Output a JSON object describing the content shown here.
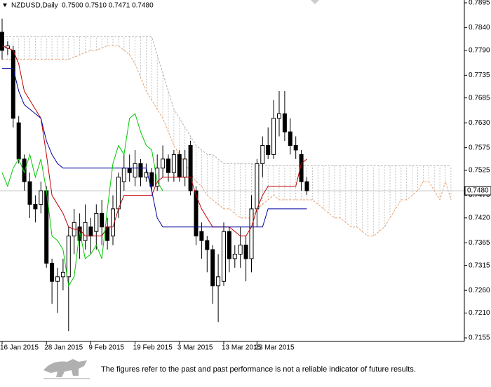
{
  "chart_data": {
    "type": "candlestick",
    "title": "NZDUSD,Daily",
    "ohlc_label": "0.7500 0.7510 0.7471 0.7480",
    "footer": "The figures refer to the past and past performance is not a reliable indicator of future results.",
    "categories": [
      "16 Jan 2015",
      null,
      null,
      null,
      null,
      null,
      null,
      null,
      "28 Jan 2015",
      null,
      null,
      null,
      null,
      null,
      null,
      null,
      "9 Feb 2015",
      null,
      null,
      null,
      null,
      null,
      null,
      null,
      "19 Feb 2015",
      null,
      null,
      null,
      null,
      null,
      null,
      null,
      "3 Mar 2015",
      null,
      null,
      null,
      null,
      null,
      null,
      null,
      "13 Mar 2015",
      null,
      null,
      null,
      null,
      null,
      "23 Mar 2015",
      null,
      null,
      null,
      null,
      null,
      null,
      null,
      null,
      null
    ],
    "open": [
      0.783,
      0.7795,
      0.779,
      0.763,
      0.755,
      0.75,
      0.745,
      0.745,
      0.748,
      0.732,
      0.728,
      0.729,
      0.729,
      0.738,
      0.74,
      0.737,
      0.74,
      0.739,
      0.743,
      0.74,
      0.738,
      0.744,
      0.75,
      0.753,
      0.751,
      0.754,
      0.751,
      0.752,
      0.749,
      0.753,
      0.755,
      0.752,
      0.756,
      0.751,
      0.758,
      0.748,
      0.739,
      0.737,
      0.735,
      0.727,
      0.728,
      0.739,
      0.733,
      0.734,
      0.736,
      0.733,
      0.744,
      0.754,
      0.758,
      0.756,
      0.764,
      0.765,
      0.761,
      0.758,
      0.756,
      0.75
    ],
    "high": [
      0.786,
      0.781,
      0.78,
      0.7645,
      0.756,
      0.752,
      0.747,
      0.75,
      0.749,
      0.733,
      0.731,
      0.733,
      0.74,
      0.744,
      0.743,
      0.745,
      0.742,
      0.745,
      0.746,
      0.742,
      0.747,
      0.752,
      0.756,
      0.756,
      0.757,
      0.755,
      0.754,
      0.753,
      0.756,
      0.758,
      0.756,
      0.757,
      0.757,
      0.757,
      0.759,
      0.749,
      0.741,
      0.738,
      0.736,
      0.734,
      0.741,
      0.74,
      0.736,
      0.74,
      0.738,
      0.747,
      0.755,
      0.76,
      0.762,
      0.768,
      0.77,
      0.77,
      0.764,
      0.76,
      0.757,
      0.751
    ],
    "low": [
      0.777,
      0.778,
      0.762,
      0.754,
      0.748,
      0.742,
      0.741,
      0.743,
      0.731,
      0.723,
      0.721,
      0.726,
      0.717,
      0.734,
      0.733,
      0.735,
      0.734,
      0.735,
      0.736,
      0.735,
      0.736,
      0.742,
      0.748,
      0.75,
      0.749,
      0.749,
      0.75,
      0.748,
      0.748,
      0.751,
      0.75,
      0.75,
      0.75,
      0.749,
      0.747,
      0.736,
      0.733,
      0.73,
      0.723,
      0.719,
      0.727,
      0.73,
      0.731,
      0.731,
      0.728,
      0.73,
      0.74,
      0.751,
      0.755,
      0.755,
      0.76,
      0.759,
      0.756,
      0.755,
      0.748,
      0.7471
    ],
    "close": [
      0.779,
      0.78,
      0.764,
      0.755,
      0.75,
      0.745,
      0.744,
      0.748,
      0.732,
      0.728,
      0.729,
      0.73,
      0.738,
      0.741,
      0.737,
      0.741,
      0.738,
      0.743,
      0.74,
      0.737,
      0.744,
      0.751,
      0.753,
      0.752,
      0.754,
      0.751,
      0.752,
      0.749,
      0.753,
      0.755,
      0.752,
      0.756,
      0.751,
      0.755,
      0.748,
      0.738,
      0.737,
      0.735,
      0.727,
      0.729,
      0.739,
      0.733,
      0.734,
      0.736,
      0.733,
      0.744,
      0.754,
      0.758,
      0.756,
      0.764,
      0.765,
      0.761,
      0.758,
      0.757,
      0.75,
      0.748
    ],
    "lines": [
      {
        "color": "#c00000",
        "values": [
          0.78,
          0.7795,
          0.779,
          0.776,
          0.77,
          0.768,
          0.766,
          0.764,
          0.756,
          0.747,
          0.745,
          0.743,
          0.74,
          0.7395,
          0.7395,
          0.738,
          0.738,
          0.738,
          0.738,
          0.74,
          0.74,
          0.744,
          0.747,
          0.747,
          0.747,
          0.747,
          0.747,
          0.747,
          0.75,
          0.751,
          0.751,
          0.751,
          0.751,
          0.751,
          0.751,
          0.747,
          0.744,
          0.742,
          0.74,
          0.74,
          0.74,
          0.74,
          0.739,
          0.738,
          0.738,
          0.74,
          0.744,
          0.747,
          0.749,
          0.749,
          0.749,
          0.749,
          0.749,
          0.749,
          0.754,
          0.755
        ]
      },
      {
        "color": "#0000a0",
        "values": [
          0.775,
          0.775,
          0.775,
          0.77,
          0.767,
          0.766,
          0.765,
          0.764,
          0.759,
          0.756,
          0.754,
          0.753,
          0.753,
          0.753,
          0.753,
          0.753,
          0.753,
          0.753,
          0.753,
          0.753,
          0.753,
          0.753,
          0.753,
          0.753,
          0.753,
          0.753,
          0.753,
          0.748,
          0.742,
          0.74,
          0.74,
          0.74,
          0.74,
          0.74,
          0.74,
          0.74,
          0.74,
          0.74,
          0.74,
          0.74,
          0.74,
          0.74,
          0.74,
          0.74,
          0.74,
          0.74,
          0.74,
          0.74,
          0.744,
          0.744,
          0.744,
          0.744,
          0.744,
          0.744,
          0.744,
          0.744
        ]
      },
      {
        "color": "#00c800",
        "values": [
          0.752,
          0.749,
          0.753,
          0.755,
          0.752,
          0.756,
          0.751,
          0.755,
          0.748,
          0.738,
          0.737,
          0.735,
          0.727,
          0.729,
          0.739,
          0.733,
          0.734,
          0.736,
          0.733,
          0.744,
          0.754,
          0.758,
          0.756,
          0.764,
          0.765,
          0.761,
          0.758,
          0.757,
          0.75,
          0.748,
          null,
          null,
          null,
          null,
          null,
          null,
          null,
          null,
          null,
          null,
          null,
          null,
          null,
          null,
          null,
          null,
          null,
          null,
          null,
          null,
          null,
          null,
          null,
          null,
          null,
          null
        ]
      }
    ],
    "span_a": {
      "color": "#e8a070",
      "values": [
        0.777,
        0.777,
        0.777,
        0.777,
        0.777,
        0.777,
        0.777,
        0.777,
        0.777,
        0.777,
        0.777,
        0.777,
        0.777,
        0.7775,
        0.778,
        0.7785,
        0.779,
        0.779,
        0.7795,
        0.78,
        0.78,
        0.78,
        0.779,
        0.778,
        0.776,
        0.773,
        0.77,
        0.768,
        0.766,
        0.764,
        0.761,
        0.758,
        0.756,
        0.754,
        0.752,
        0.75,
        0.749,
        0.747,
        0.746,
        0.745,
        0.744,
        0.744,
        0.743,
        0.742,
        0.742,
        0.742,
        0.744,
        0.745,
        0.746,
        0.747,
        0.746,
        0.746,
        0.746,
        0.746,
        0.746,
        0.746,
        0.746,
        0.745,
        0.744,
        0.743,
        0.742,
        0.742,
        0.741,
        0.74,
        0.74,
        0.739,
        0.738,
        0.738,
        0.739,
        0.74,
        0.742,
        0.744,
        0.746,
        0.746,
        0.747,
        0.748,
        0.75,
        0.75,
        0.748,
        0.746,
        0.75,
        0.746
      ]
    },
    "span_b": {
      "color": "#b4b4b4",
      "values": [
        0.782,
        0.782,
        0.782,
        0.782,
        0.782,
        0.782,
        0.782,
        0.782,
        0.782,
        0.782,
        0.782,
        0.782,
        0.782,
        0.782,
        0.782,
        0.782,
        0.782,
        0.782,
        0.782,
        0.782,
        0.782,
        0.782,
        0.782,
        0.782,
        0.782,
        0.782,
        0.782,
        0.782,
        0.778,
        0.774,
        0.77,
        0.766,
        0.764,
        0.762,
        0.76,
        0.758,
        0.757,
        0.756,
        0.756,
        0.755,
        0.754,
        0.754,
        0.754,
        0.754,
        0.754,
        0.754,
        0.7535,
        0.7535,
        0.7535,
        0.7535,
        0.7535,
        0.7535,
        0.7535,
        0.7535,
        0.7535,
        0.7535,
        0.7535,
        0.7535,
        0.7535,
        0.7535,
        0.7535,
        0.7535,
        0.7535,
        0.7535,
        0.7535,
        0.7535,
        0.7535,
        0.7535,
        0.7535,
        0.7535,
        0.7535,
        0.7535,
        0.7535,
        0.7535,
        0.7535,
        0.7535,
        0.7535,
        0.7535,
        0.7535,
        0.7535,
        0.7535,
        0.7535
      ]
    },
    "current_price": {
      "value": 0.748,
      "label": "0.7480"
    },
    "ylim": [
      0.7155,
      0.7895
    ],
    "yticks": [
      0.7895,
      {
        "value": 0.784,
        "label": "0.7840"
      },
      {
        "value": 0.779,
        "label": "0.7790"
      },
      0.7735,
      0.7685,
      {
        "value": 0.763,
        "label": "0.7630"
      },
      0.7575,
      0.7525,
      {
        "value": 0.747,
        "label": "0.7470"
      },
      {
        "value": 0.742,
        "label": "0.7420"
      },
      0.7365,
      0.7315,
      {
        "value": 0.726,
        "label": "0.7260"
      },
      {
        "value": 0.721,
        "label": "0.7210"
      },
      0.7155
    ]
  }
}
